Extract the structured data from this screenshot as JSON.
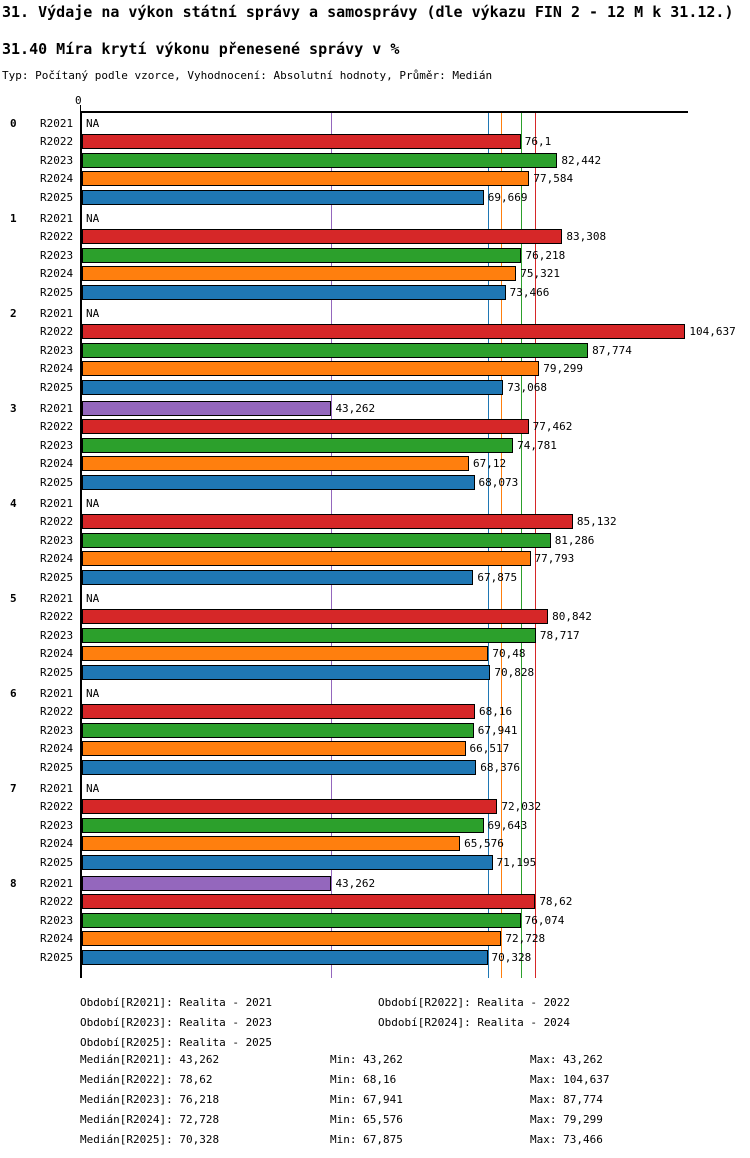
{
  "title": "31. Výdaje na výkon státní správy a samosprávy (dle výkazu FIN 2 - 12 M k 31.12.)",
  "subtitle": "31.40 Míra krytí výkonu přenesené správy v %",
  "meta": "Typ: Počítaný podle vzorce, Vyhodnocení: Absolutní hodnoty, Průměr: Medián",
  "chart_data": {
    "type": "bar",
    "orientation": "horizontal",
    "axis": {
      "origin_label": "0",
      "min": 0,
      "max": 105.1,
      "grid": false
    },
    "series": [
      {
        "name": "R2021",
        "color": "#9467bd"
      },
      {
        "name": "R2022",
        "color": "#d62728"
      },
      {
        "name": "R2023",
        "color": "#2ca02c"
      },
      {
        "name": "R2024",
        "color": "#ff7f0e"
      },
      {
        "name": "R2025",
        "color": "#1f77b4"
      }
    ],
    "groups": [
      {
        "category": "0",
        "values": [
          null,
          76.1,
          82.442,
          77.584,
          69.669
        ],
        "labels": [
          "NA",
          "76,1",
          "82,442",
          "77,584",
          "69,669"
        ]
      },
      {
        "category": "1",
        "values": [
          null,
          83.308,
          76.218,
          75.321,
          73.466
        ],
        "labels": [
          "NA",
          "83,308",
          "76,218",
          "75,321",
          "73,466"
        ]
      },
      {
        "category": "2",
        "values": [
          null,
          104.637,
          87.774,
          79.299,
          73.068
        ],
        "labels": [
          "NA",
          "104,637",
          "87,774",
          "79,299",
          "73,068"
        ]
      },
      {
        "category": "3",
        "values": [
          43.262,
          77.462,
          74.781,
          67.12,
          68.073
        ],
        "labels": [
          "43,262",
          "77,462",
          "74,781",
          "67,12",
          "68,073"
        ]
      },
      {
        "category": "4",
        "values": [
          null,
          85.132,
          81.286,
          77.793,
          67.875
        ],
        "labels": [
          "NA",
          "85,132",
          "81,286",
          "77,793",
          "67,875"
        ]
      },
      {
        "category": "5",
        "values": [
          null,
          80.842,
          78.717,
          70.48,
          70.828
        ],
        "labels": [
          "NA",
          "80,842",
          "78,717",
          "70,48",
          "70,828"
        ]
      },
      {
        "category": "6",
        "values": [
          null,
          68.16,
          67.941,
          66.517,
          68.376
        ],
        "labels": [
          "NA",
          "68,16",
          "67,941",
          "66,517",
          "68,376"
        ]
      },
      {
        "category": "7",
        "values": [
          null,
          72.032,
          69.643,
          65.576,
          71.195
        ],
        "labels": [
          "NA",
          "72,032",
          "69,643",
          "65,576",
          "71,195"
        ]
      },
      {
        "category": "8",
        "values": [
          43.262,
          78.62,
          76.074,
          72.728,
          70.328
        ],
        "labels": [
          "43,262",
          "78,62",
          "76,074",
          "72,728",
          "70,328"
        ]
      }
    ],
    "median_lines": [
      {
        "series": "R2021",
        "value": 43.262,
        "color": "#9467bd"
      },
      {
        "series": "R2022",
        "value": 78.62,
        "color": "#d62728"
      },
      {
        "series": "R2023",
        "value": 76.218,
        "color": "#2ca02c"
      },
      {
        "series": "R2024",
        "value": 72.728,
        "color": "#ff7f0e"
      },
      {
        "series": "R2025",
        "value": 70.328,
        "color": "#1f77b4"
      }
    ],
    "legend_rows": [
      [
        "Období[R2021]: Realita - 2021",
        "Období[R2022]: Realita - 2022"
      ],
      [
        "Období[R2023]: Realita - 2023",
        "Období[R2024]: Realita - 2024"
      ],
      [
        "Období[R2025]: Realita - 2025"
      ]
    ],
    "stat_rows": [
      [
        "Medián[R2021]: 43,262",
        "Min: 43,262",
        "Max: 43,262"
      ],
      [
        "Medián[R2022]: 78,62",
        "Min: 68,16",
        "Max: 104,637"
      ],
      [
        "Medián[R2023]: 76,218",
        "Min: 67,941",
        "Max: 87,774"
      ],
      [
        "Medián[R2024]: 72,728",
        "Min: 65,576",
        "Max: 79,299"
      ],
      [
        "Medián[R2025]: 70,328",
        "Min: 67,875",
        "Max: 73,466"
      ]
    ]
  }
}
